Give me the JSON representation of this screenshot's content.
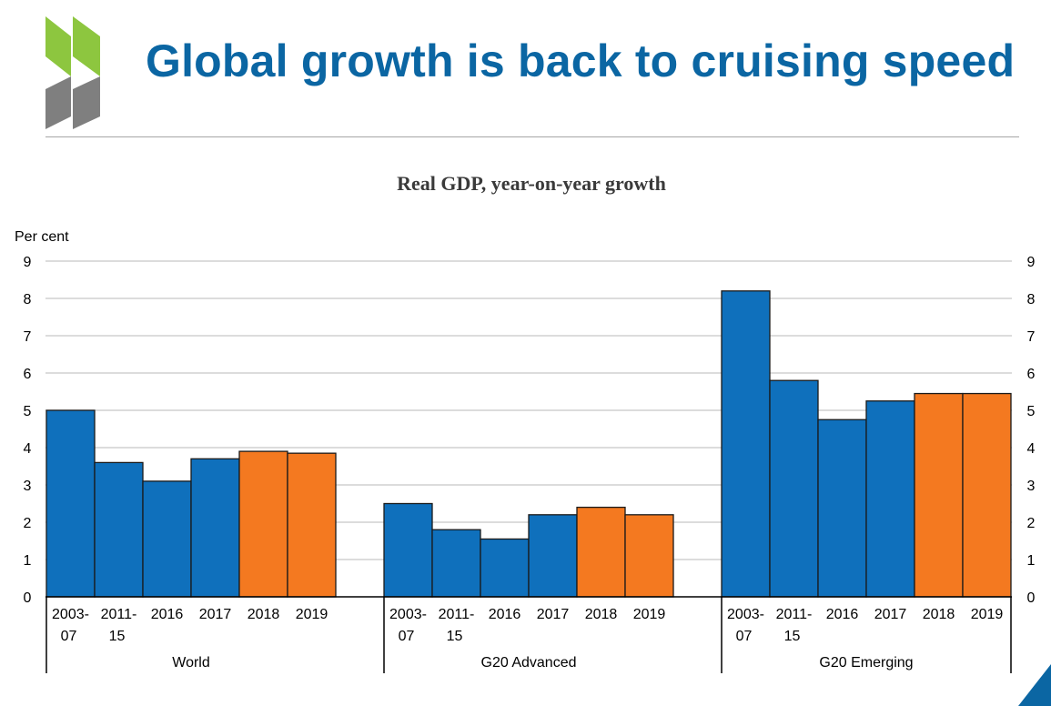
{
  "slide": {
    "title": "Global growth is back to cruising speed"
  },
  "colors": {
    "title": "#0b66a3",
    "actual": "#0f70bc",
    "projection": "#f47920",
    "logo_green": "#8dc63f",
    "logo_grey": "#7f7f7f",
    "corner": "#0b66a3"
  },
  "chart_data": {
    "type": "bar",
    "title": "Real GDP,  year-on-year growth",
    "ylabel": "Per cent",
    "ylim": [
      0,
      9
    ],
    "yticks": [
      "0",
      "1",
      "2",
      "3",
      "4",
      "5",
      "6",
      "7",
      "8",
      "9"
    ],
    "grid": true,
    "categories": [
      "2003-07",
      "2011-15",
      "2016",
      "2017",
      "2018",
      "2019"
    ],
    "category_lines": [
      [
        "2003-",
        "07"
      ],
      [
        "2011-",
        "15"
      ],
      [
        "2016"
      ],
      [
        "2017"
      ],
      [
        "2018"
      ],
      [
        "2019"
      ]
    ],
    "projection_categories": [
      "2018",
      "2019"
    ],
    "groups": [
      {
        "name": "World",
        "values": [
          5.0,
          3.6,
          3.1,
          3.7,
          3.9,
          3.85
        ]
      },
      {
        "name": "G20 Advanced",
        "values": [
          2.5,
          1.8,
          1.55,
          2.2,
          2.4,
          2.2
        ]
      },
      {
        "name": "G20 Emerging",
        "values": [
          8.2,
          5.8,
          4.75,
          5.25,
          5.45,
          5.45
        ]
      }
    ]
  }
}
